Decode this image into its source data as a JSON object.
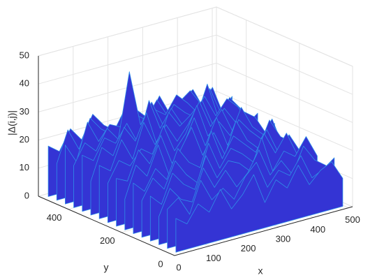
{
  "chart_data": {
    "type": "surface3d",
    "xlabel": "x",
    "ylabel": "y",
    "zlabel": "|Δ(i,j)|",
    "xlim": [
      0,
      512
    ],
    "ylim": [
      0,
      512
    ],
    "zlim": [
      0,
      50
    ],
    "xticks": [
      0,
      100,
      200,
      300,
      400,
      500
    ],
    "yticks": [
      0,
      200,
      400
    ],
    "zticks": [
      0,
      10,
      20,
      30,
      40,
      50
    ],
    "color": "#3434d4",
    "edge_color": "#2f8fe8",
    "x": [
      16,
      48,
      80,
      112,
      144,
      176,
      208,
      240,
      272,
      304,
      336,
      368,
      400,
      432,
      464,
      496
    ],
    "y": [
      16,
      48,
      80,
      112,
      144,
      176,
      208,
      240,
      272,
      304,
      336,
      368,
      400,
      432,
      464,
      496
    ],
    "z": [
      [
        12,
        9,
        15,
        11,
        18,
        10,
        14,
        20,
        9,
        16,
        12,
        19,
        11,
        15,
        17,
        10
      ],
      [
        14,
        17,
        10,
        21,
        13,
        16,
        11,
        18,
        22,
        12,
        17,
        14,
        20,
        11,
        13,
        16
      ],
      [
        10,
        19,
        14,
        12,
        23,
        15,
        20,
        13,
        17,
        24,
        14,
        18,
        12,
        21,
        15,
        12
      ],
      [
        16,
        12,
        22,
        17,
        14,
        25,
        16,
        21,
        19,
        15,
        26,
        13,
        19,
        16,
        22,
        14
      ],
      [
        13,
        20,
        15,
        24,
        18,
        14,
        27,
        17,
        23,
        20,
        16,
        25,
        17,
        23,
        14,
        18
      ],
      [
        18,
        14,
        21,
        16,
        26,
        20,
        17,
        29,
        18,
        25,
        21,
        17,
        24,
        15,
        20,
        13
      ],
      [
        11,
        22,
        17,
        27,
        15,
        23,
        30,
        19,
        26,
        17,
        28,
        20,
        16,
        25,
        18,
        15
      ],
      [
        17,
        15,
        25,
        19,
        28,
        17,
        22,
        31,
        20,
        29,
        18,
        26,
        21,
        17,
        23,
        12
      ],
      [
        14,
        21,
        18,
        23,
        20,
        29,
        19,
        24,
        33,
        21,
        25,
        19,
        28,
        20,
        16,
        19
      ],
      [
        19,
        16,
        26,
        18,
        30,
        21,
        27,
        20,
        25,
        32,
        22,
        27,
        18,
        24,
        21,
        14
      ],
      [
        12,
        23,
        19,
        28,
        22,
        31,
        18,
        29,
        23,
        26,
        30,
        20,
        25,
        19,
        17,
        20
      ],
      [
        20,
        17,
        24,
        21,
        27,
        19,
        33,
        22,
        28,
        21,
        24,
        29,
        21,
        26,
        22,
        15
      ],
      [
        15,
        22,
        18,
        25,
        20,
        43,
        23,
        30,
        21,
        27,
        23,
        20,
        31,
        18,
        24,
        19
      ],
      [
        21,
        14,
        27,
        19,
        24,
        22,
        28,
        19,
        25,
        22,
        28,
        24,
        19,
        27,
        17,
        22
      ],
      [
        13,
        24,
        16,
        26,
        21,
        18,
        25,
        23,
        20,
        26,
        19,
        23,
        26,
        20,
        25,
        14
      ],
      [
        18,
        15,
        22,
        17,
        25,
        20,
        17,
        24,
        22,
        18,
        25,
        17,
        21,
        24,
        16,
        20
      ]
    ]
  }
}
